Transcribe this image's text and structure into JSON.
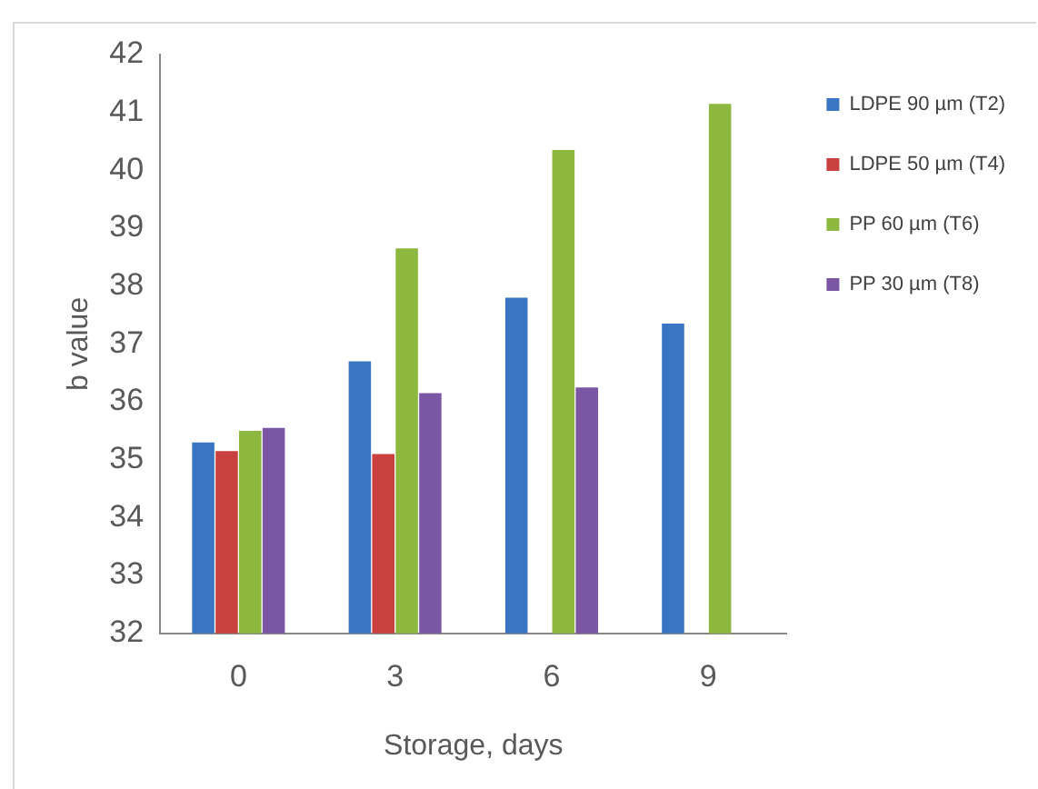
{
  "chart_data": {
    "type": "bar",
    "xlabel": "Storage, days",
    "ylabel": "b value",
    "categories": [
      "0",
      "3",
      "6",
      "9"
    ],
    "series": [
      {
        "name": "LDPE 90 µm (T2)",
        "color": "#3a75c4",
        "values": [
          35.3,
          36.7,
          37.8,
          37.35
        ]
      },
      {
        "name": "LDPE 50 µm (T4)",
        "color": "#c9413e",
        "values": [
          35.15,
          35.1,
          null,
          null
        ]
      },
      {
        "name": "PP 60 µm (T6)",
        "color": "#8db83f",
        "values": [
          35.5,
          38.65,
          40.35,
          41.15
        ]
      },
      {
        "name": "PP 30 µm (T8)",
        "color": "#7b56a4",
        "values": [
          35.55,
          36.15,
          36.25,
          null
        ]
      }
    ],
    "ylim": [
      32,
      42
    ],
    "yticks": [
      32,
      33,
      34,
      35,
      36,
      37,
      38,
      39,
      40,
      41,
      42
    ],
    "grid": false,
    "legend": "top right"
  }
}
